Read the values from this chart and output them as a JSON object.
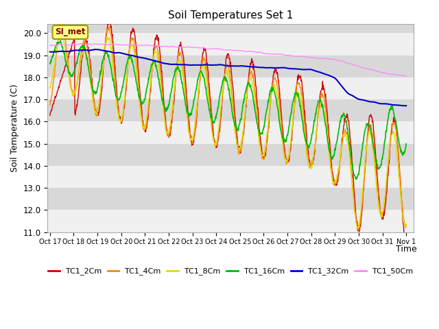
{
  "title": "Soil Temperatures Set 1",
  "xlabel": "Time",
  "ylabel": "Soil Temperature (C)",
  "ylim": [
    11.0,
    20.4
  ],
  "yticks": [
    11.0,
    12.0,
    13.0,
    14.0,
    15.0,
    16.0,
    17.0,
    18.0,
    19.0,
    20.0
  ],
  "series": [
    "TC1_2Cm",
    "TC1_4Cm",
    "TC1_8Cm",
    "TC1_16Cm",
    "TC1_32Cm",
    "TC1_50Cm"
  ],
  "colors": [
    "#cc0000",
    "#ff8800",
    "#dddd00",
    "#00bb00",
    "#0000cc",
    "#ff88ff"
  ],
  "legend_label": "SI_met",
  "x_tick_labels": [
    "Oct 17",
    "Oct 18",
    "Oct 19",
    "Oct 20",
    "Oct 21",
    "Oct 22",
    "Oct 23",
    "Oct 24",
    "Oct 25",
    "Oct 26",
    "Oct 27",
    "Oct 28",
    "Oct 29",
    "Oct 30",
    "Oct 31",
    "Nov 1"
  ],
  "stripe_colors": [
    "#f0f0f0",
    "#d8d8d8"
  ],
  "bg_color": "#d8d8d8"
}
